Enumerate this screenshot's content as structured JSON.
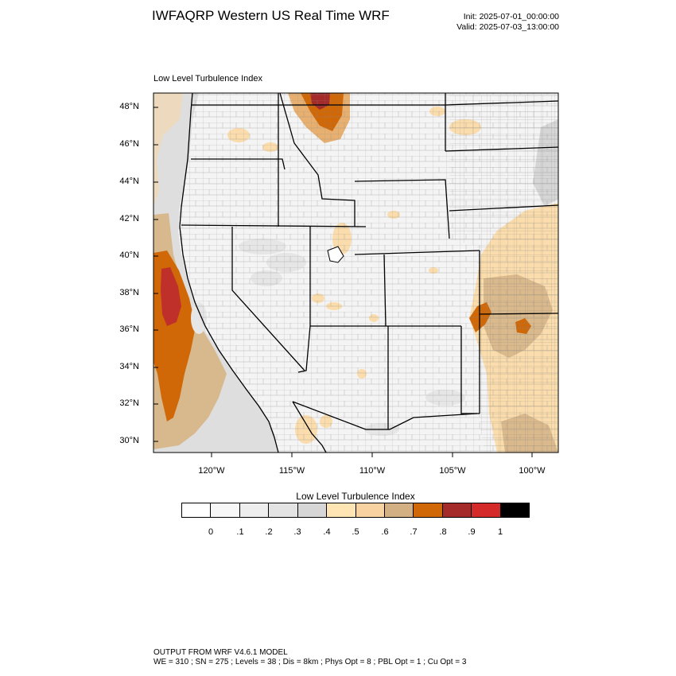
{
  "header": {
    "title": "IWFAQRP Western US Real Time WRF",
    "init": "Init: 2025-07-01_00:00:00",
    "valid": "Valid: 2025-07-03_13:00:00"
  },
  "map": {
    "subtitle": "Low Level Turbulence Index",
    "lat_labels": [
      "48°N",
      "46°N",
      "44°N",
      "42°N",
      "40°N",
      "38°N",
      "36°N",
      "34°N",
      "32°N",
      "30°N"
    ],
    "lon_labels": [
      "120°W",
      "115°W",
      "110°W",
      "105°W",
      "100°W"
    ],
    "lon_range": [
      -123.6,
      -98.4
    ],
    "lat_range": [
      29.5,
      48.8
    ]
  },
  "colorbar": {
    "title": "Low Level Turbulence Index",
    "labels": [
      "0",
      ".1",
      ".2",
      ".3",
      ".4",
      ".5",
      ".6",
      ".7",
      ".8",
      ".9",
      "1"
    ],
    "colors": [
      "#ffffff",
      "#f7f7f7",
      "#eeeeee",
      "#e3e3e3",
      "#d6d6d6",
      "#ffe4b4",
      "#f8d2a0",
      "#d2b084",
      "#d06808",
      "#a52a2a",
      "#d42a2a",
      "#000000"
    ]
  },
  "footer": {
    "line1": "OUTPUT FROM WRF V4.6.1 MODEL",
    "line2": "WE = 310 ; SN = 275 ; Levels = 38 ; Dis = 8km ; Phys Opt = 8 ; PBL Opt = 1 ; Cu Opt = 3"
  }
}
